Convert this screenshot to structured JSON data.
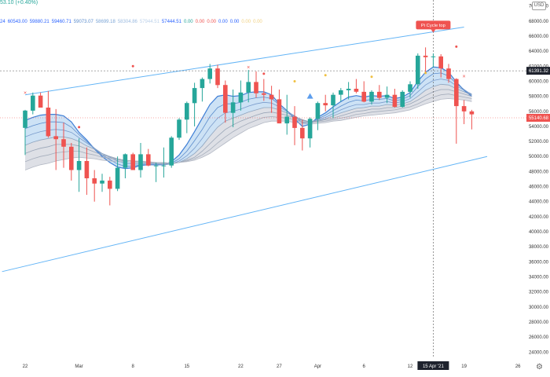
{
  "header": {
    "change": "53.10 (+0.40%)",
    "ma_values": [
      {
        "text": "24",
        "color": "#2962ff"
      },
      {
        "text": "60543.00",
        "color": "#2962ff"
      },
      {
        "text": "59880.21",
        "color": "#2962ff"
      },
      {
        "text": "59460.71",
        "color": "#2962ff"
      },
      {
        "text": "59073.07",
        "color": "#5b8ccc"
      },
      {
        "text": "58699.18",
        "color": "#7aa4d6"
      },
      {
        "text": "58304.86",
        "color": "#9cbbe0"
      },
      {
        "text": "57944.51",
        "color": "#bcd1ea"
      },
      {
        "text": "57444.51",
        "color": "#2962ff"
      },
      {
        "text": "0.00",
        "color": "#26a69a"
      },
      {
        "text": "0.00",
        "color": "#ef5350"
      },
      {
        "text": "0.00",
        "color": "#ef5350"
      },
      {
        "text": "0.00",
        "color": "#2962ff"
      },
      {
        "text": "0.00",
        "color": "#2962ff"
      },
      {
        "text": "0.00",
        "color": "#f0d080"
      },
      {
        "text": "0.00",
        "color": "#f0d080"
      }
    ],
    "currency": "USD"
  },
  "chart_data": {
    "type": "candlestick",
    "y_axis": {
      "ticks": [
        24000,
        26000,
        28000,
        30000,
        32000,
        34000,
        36000,
        38000,
        40000,
        42000,
        44000,
        46000,
        48000,
        50000,
        52000,
        54000,
        56000,
        58000,
        60000,
        62000,
        64000,
        66000,
        68000,
        70000
      ],
      "tick_labels": [
        "24000.00",
        "26000.00",
        "28000.00",
        "30000.00",
        "32000.00",
        "34000.00",
        "36000.00",
        "38000.00",
        "40000.00",
        "42000.00",
        "44000.00",
        "46000.00",
        "48000.00",
        "50000.00",
        "52000.00",
        "54000.00",
        "56000.00",
        "58000.00",
        "60000.00",
        "62000.00",
        "64000.00",
        "66000.00",
        "68000.00",
        "70000.00"
      ],
      "range": [
        23300,
        70800
      ]
    },
    "x_axis": {
      "tick_labels": [
        "22",
        "Mar",
        "8",
        "15",
        "22",
        "27",
        "Apr",
        "6",
        "12",
        "19",
        "26"
      ],
      "tick_positions_days": [
        0,
        7,
        14,
        21,
        28,
        33,
        38,
        44,
        50,
        57,
        64
      ],
      "crosshair_label": "15 Apr '21",
      "crosshair_day": 53
    },
    "candles": [
      [
        53800,
        56200,
        50200,
        56100
      ],
      [
        56100,
        58500,
        55600,
        58100
      ],
      [
        58100,
        58500,
        56500,
        56500
      ],
      [
        56500,
        58700,
        52500,
        52700
      ],
      [
        52700,
        56300,
        48200,
        52300
      ],
      [
        52300,
        54500,
        48500,
        51300
      ],
      [
        51300,
        51800,
        46800,
        48200
      ],
      [
        48200,
        52400,
        45300,
        49400
      ],
      [
        49400,
        51200,
        44900,
        47100
      ],
      [
        47100,
        48200,
        44000,
        46400
      ],
      [
        46400,
        47700,
        45300,
        46800
      ],
      [
        46800,
        47300,
        43500,
        45700
      ],
      [
        45700,
        50000,
        45400,
        48500
      ],
      [
        48500,
        50400,
        47100,
        50300
      ],
      [
        50300,
        50500,
        48200,
        48200
      ],
      [
        48200,
        51800,
        47200,
        50300
      ],
      [
        50300,
        51000,
        48700,
        48800
      ],
      [
        48800,
        49200,
        46600,
        48800
      ],
      [
        48800,
        51200,
        47200,
        48800
      ],
      [
        48800,
        52700,
        48500,
        52500
      ],
      [
        52500,
        55100,
        52200,
        54900
      ],
      [
        54900,
        57300,
        53100,
        57100
      ],
      [
        57100,
        59800,
        54000,
        59100
      ],
      [
        59100,
        60500,
        57300,
        60300
      ],
      [
        60300,
        62300,
        59700,
        61700
      ],
      [
        61700,
        62200,
        59100,
        59500
      ],
      [
        59500,
        60100,
        54500,
        55800
      ],
      [
        55800,
        58900,
        53900,
        57200
      ],
      [
        57200,
        60100,
        56100,
        58500
      ],
      [
        58500,
        61500,
        57200,
        59900
      ],
      [
        59900,
        61300,
        57800,
        58400
      ],
      [
        58400,
        60300,
        57400,
        58200
      ],
      [
        58200,
        59400,
        55800,
        57600
      ],
      [
        57600,
        58900,
        54400,
        54400
      ],
      [
        54400,
        58200,
        52900,
        55300
      ],
      [
        55300,
        56700,
        51500,
        53800
      ],
      [
        53800,
        54900,
        50800,
        52400
      ],
      [
        52400,
        55200,
        51200,
        55000
      ],
      [
        55000,
        57300,
        53500,
        57100
      ],
      [
        57100,
        58200,
        56000,
        56800
      ],
      [
        56800,
        58500,
        55100,
        58200
      ],
      [
        58200,
        59100,
        57300,
        58800
      ],
      [
        58800,
        59900,
        57600,
        59000
      ],
      [
        59000,
        60300,
        58400,
        58600
      ],
      [
        58600,
        60000,
        57200,
        57300
      ],
      [
        57300,
        58800,
        56900,
        58600
      ],
      [
        58600,
        59500,
        57500,
        57800
      ],
      [
        57800,
        59300,
        57100,
        58200
      ],
      [
        58200,
        59000,
        56500,
        56600
      ],
      [
        56600,
        58800,
        56500,
        58600
      ],
      [
        58600,
        60000,
        57800,
        59600
      ],
      [
        59600,
        63700,
        59000,
        63400
      ],
      [
        63400,
        64500,
        61000,
        63200
      ],
      [
        63200,
        63700,
        61800,
        63300
      ],
      [
        63300,
        63600,
        60500,
        61700
      ],
      [
        61700,
        62300,
        59800,
        60300
      ],
      [
        60300,
        60400,
        51700,
        56700
      ],
      [
        56700,
        57500,
        54300,
        56000
      ],
      [
        56000,
        56200,
        53600,
        55600
      ]
    ],
    "ribbon": [
      [
        54800,
        53700,
        52600,
        51500,
        50400,
        49300,
        48200
      ],
      [
        55200,
        54100,
        53000,
        51900,
        50800,
        49700,
        48600
      ],
      [
        55500,
        54400,
        53300,
        52200,
        51100,
        50000,
        48900
      ],
      [
        55600,
        54600,
        53500,
        52400,
        51300,
        50200,
        49100
      ],
      [
        55600,
        54600,
        53600,
        52600,
        51600,
        50500,
        49400
      ],
      [
        55400,
        54500,
        53500,
        52600,
        51600,
        50600,
        49600
      ],
      [
        54600,
        53900,
        53200,
        52400,
        51600,
        50700,
        49800
      ],
      [
        53200,
        52900,
        52500,
        52000,
        51400,
        50700,
        49900
      ],
      [
        52200,
        52000,
        51800,
        51400,
        51000,
        50400,
        49800
      ],
      [
        51000,
        51100,
        51100,
        51000,
        50600,
        50200,
        49700
      ],
      [
        50000,
        50200,
        50400,
        50400,
        50200,
        49900,
        49500
      ],
      [
        49200,
        49600,
        49900,
        50000,
        50000,
        49800,
        49400
      ],
      [
        48600,
        49000,
        49400,
        49600,
        49700,
        49600,
        49300
      ],
      [
        48400,
        48700,
        49100,
        49400,
        49500,
        49500,
        49300
      ],
      [
        48500,
        48700,
        49000,
        49200,
        49400,
        49400,
        49300
      ],
      [
        48800,
        48900,
        49000,
        49200,
        49300,
        49400,
        49300
      ],
      [
        48900,
        48900,
        49000,
        49100,
        49200,
        49300,
        49300
      ],
      [
        48900,
        48900,
        49000,
        49100,
        49200,
        49200,
        49200
      ],
      [
        48900,
        48900,
        48900,
        49000,
        49100,
        49200,
        49200
      ],
      [
        49300,
        49100,
        49000,
        49000,
        49100,
        49100,
        49100
      ],
      [
        50200,
        49700,
        49400,
        49200,
        49200,
        49200,
        49200
      ],
      [
        51600,
        50700,
        50100,
        49700,
        49500,
        49400,
        49300
      ],
      [
        53300,
        52100,
        51100,
        50400,
        49900,
        49700,
        49500
      ],
      [
        55100,
        53600,
        52400,
        51400,
        50700,
        50200,
        49900
      ],
      [
        56900,
        55300,
        53900,
        52700,
        51700,
        50900,
        50400
      ],
      [
        58000,
        56500,
        55100,
        53900,
        52700,
        51800,
        51100
      ],
      [
        58200,
        57000,
        55800,
        54700,
        53600,
        52600,
        51800
      ],
      [
        58000,
        57000,
        56000,
        55100,
        54200,
        53300,
        52500
      ],
      [
        58100,
        57200,
        56300,
        55500,
        54700,
        53900,
        53100
      ],
      [
        58500,
        57600,
        56700,
        55900,
        55100,
        54400,
        53700
      ],
      [
        58600,
        57800,
        57000,
        56200,
        55500,
        54800,
        54100
      ],
      [
        58600,
        57900,
        57200,
        56500,
        55800,
        55200,
        54500
      ],
      [
        58200,
        57700,
        57100,
        56500,
        55900,
        55300,
        54700
      ],
      [
        57000,
        56900,
        56600,
        56200,
        55700,
        55200,
        54700
      ],
      [
        56100,
        56100,
        56000,
        55800,
        55500,
        55100,
        54700
      ],
      [
        55000,
        55300,
        55400,
        55300,
        55100,
        54900,
        54500
      ],
      [
        54000,
        54500,
        54800,
        54900,
        54800,
        54600,
        54400
      ],
      [
        54300,
        54500,
        54600,
        54600,
        54600,
        54500,
        54300
      ],
      [
        55200,
        55000,
        54900,
        54800,
        54700,
        54600,
        54400
      ],
      [
        55800,
        55500,
        55200,
        55000,
        54900,
        54700,
        54500
      ],
      [
        56600,
        56100,
        55700,
        55400,
        55100,
        54900,
        54700
      ],
      [
        57300,
        56700,
        56200,
        55800,
        55400,
        55100,
        54800
      ],
      [
        57900,
        57200,
        56600,
        56100,
        55700,
        55300,
        55000
      ],
      [
        58100,
        57500,
        56900,
        56400,
        56000,
        55600,
        55200
      ],
      [
        57900,
        57400,
        56900,
        56500,
        56100,
        55700,
        55400
      ],
      [
        58100,
        57600,
        57100,
        56700,
        56300,
        55900,
        55500
      ],
      [
        58000,
        57600,
        57100,
        56700,
        56300,
        56000,
        55600
      ],
      [
        58100,
        57700,
        57300,
        56900,
        56500,
        56100,
        55700
      ],
      [
        57700,
        57400,
        57100,
        56800,
        56500,
        56200,
        55800
      ],
      [
        57900,
        57600,
        57300,
        57000,
        56700,
        56400,
        56000
      ],
      [
        58500,
        58100,
        57700,
        57300,
        57000,
        56600,
        56200
      ],
      [
        60000,
        59300,
        58600,
        58000,
        57500,
        57000,
        56600
      ],
      [
        61200,
        60300,
        59500,
        58800,
        58100,
        57500,
        57000
      ],
      [
        61900,
        61000,
        60100,
        59300,
        58600,
        57900,
        57300
      ],
      [
        61800,
        61100,
        60300,
        59600,
        58900,
        58200,
        57600
      ],
      [
        61200,
        60700,
        60100,
        59500,
        58900,
        58300,
        57700
      ],
      [
        59900,
        59700,
        59400,
        59000,
        58600,
        58100,
        57600
      ],
      [
        58800,
        58900,
        58800,
        58600,
        58300,
        57900,
        57500
      ],
      [
        58000,
        58200,
        58300,
        58200,
        58000,
        57700,
        57300
      ]
    ],
    "ribbon_fill": {
      "upper_color": "#90bfe8",
      "lower_color": "#c8ccd6"
    },
    "markers_up": [
      {
        "day": 0,
        "price": 58200,
        "shape": "x",
        "color": "#ef5350"
      },
      {
        "day": 29,
        "price": 61600,
        "shape": "x",
        "color": "#ef5350"
      },
      {
        "day": 57,
        "price": 60400,
        "shape": "x",
        "color": "#ef5350"
      }
    ],
    "markers_small": [
      {
        "day": 7,
        "price": 53900,
        "color": "#ef5350"
      },
      {
        "day": 14,
        "price": 62000,
        "color": "#ef5350"
      },
      {
        "day": 31,
        "price": 61000,
        "color": "#ef5350"
      },
      {
        "day": 56,
        "price": 64600,
        "color": "#ef5350"
      },
      {
        "day": 35,
        "price": 60000,
        "color": "#f0c040"
      },
      {
        "day": 39,
        "price": 60800,
        "color": "#f0c040"
      },
      {
        "day": 45,
        "price": 60600,
        "color": "#f0c040"
      },
      {
        "day": 52,
        "price": 61100,
        "color": "#f0c040"
      }
    ],
    "markers_triangle": [
      {
        "day": 37,
        "price": 58000,
        "color": "#5c9ded"
      }
    ],
    "channel_upper": {
      "from": {
        "day": 0,
        "price": 58200
      },
      "to": {
        "day": 57,
        "price": 67200
      }
    },
    "channel_lower": {
      "from": {
        "day": -3,
        "price": 34700
      },
      "to": {
        "day": 60,
        "price": 50000
      }
    },
    "annotation": {
      "text": "Pi Cycle top",
      "day": 53,
      "price": 67000,
      "color": "#ef5350"
    },
    "price_labels": [
      {
        "text": "61391.32",
        "price": 61391,
        "bg": "#1e222d",
        "fg": "#ffffff"
      },
      {
        "text": "55140.68",
        "price": 55141,
        "bg": "#ef5350",
        "fg": "#ffffff"
      }
    ],
    "colors": {
      "up": "#26a69a",
      "down": "#ef5350",
      "channel": "#64b5f6",
      "ribbon_line": "#5b8ccc"
    }
  }
}
